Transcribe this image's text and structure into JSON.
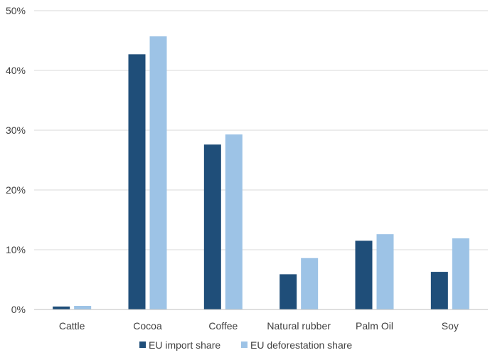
{
  "chart_data": {
    "type": "bar",
    "categories": [
      "Cattle",
      "Cocoa",
      "Coffee",
      "Natural rubber",
      "Palm Oil",
      "Soy"
    ],
    "series": [
      {
        "name": "EU import share",
        "values": [
          0.5,
          42.7,
          27.6,
          5.9,
          11.5,
          6.3
        ],
        "color": "#1f4e79"
      },
      {
        "name": "EU deforestation share",
        "values": [
          0.6,
          45.7,
          29.3,
          8.6,
          12.6,
          11.9
        ],
        "color": "#9dc3e6"
      }
    ],
    "ylim": [
      0,
      50
    ],
    "yticks": [
      0,
      10,
      20,
      30,
      40,
      50
    ],
    "ytick_labels": [
      "0%",
      "10%",
      "20%",
      "30%",
      "40%",
      "50%"
    ],
    "grid": true,
    "legend_position": "bottom",
    "gridline_color": "#d9d9d9",
    "axis_color": "#bfbfbf",
    "title": "",
    "xlabel": "",
    "ylabel": ""
  }
}
